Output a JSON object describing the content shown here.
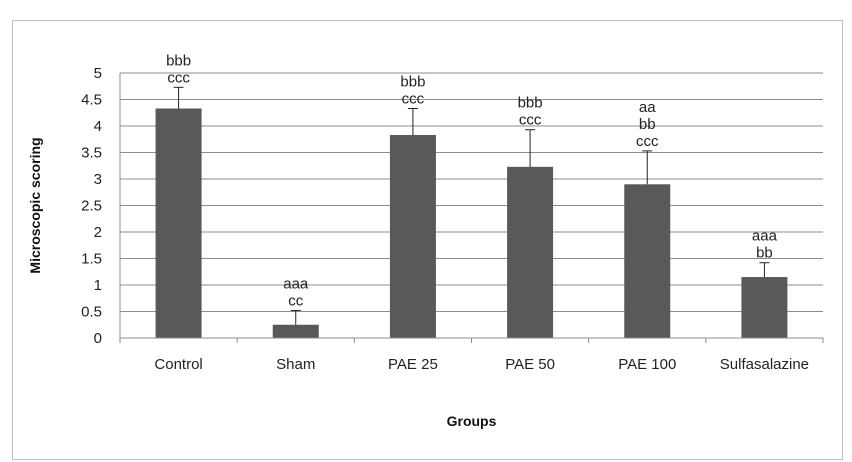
{
  "chart_data": {
    "type": "bar",
    "xlabel": "Groups",
    "ylabel": "Microscopic scoring",
    "ylim": [
      0,
      5
    ],
    "yticks": [
      "0",
      "0.5",
      "1",
      "1.5",
      "2",
      "2.5",
      "3",
      "3.5",
      "4",
      "4.5",
      "5"
    ],
    "grid": true,
    "bar_color": "#595959",
    "categories": [
      "Control",
      "Sham",
      "PAE 25",
      "PAE 50",
      "PAE 100",
      "Sulfasalazine"
    ],
    "values": [
      4.33,
      0.25,
      3.83,
      3.23,
      2.9,
      1.15
    ],
    "errors": [
      0.4,
      0.27,
      0.5,
      0.7,
      0.63,
      0.27
    ],
    "annotations": [
      [
        "bbb",
        "ccc"
      ],
      [
        "aaa",
        "cc"
      ],
      [
        "bbb",
        "ccc"
      ],
      [
        "bbb",
        "ccc"
      ],
      [
        "aa",
        "bb",
        "ccc"
      ],
      [
        "aaa",
        "bb"
      ]
    ]
  }
}
